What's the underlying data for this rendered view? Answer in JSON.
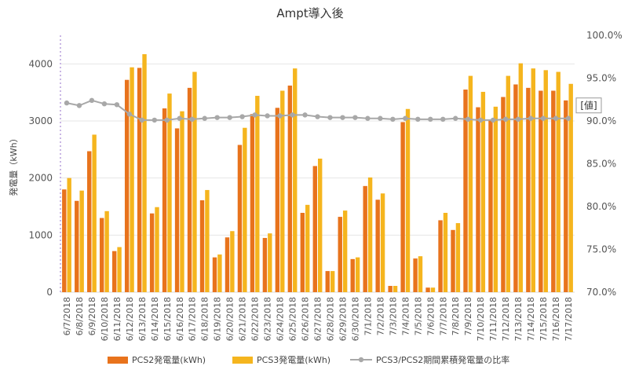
{
  "chart_data": {
    "type": "bar",
    "title": "Ampt導入後",
    "ylabel": "発電量（kWh）",
    "ylim": [
      0,
      4500
    ],
    "yticks": [
      0,
      1000,
      2000,
      3000,
      4000
    ],
    "y2lim": [
      70,
      100
    ],
    "y2ticks": [
      "70.0%",
      "75.0%",
      "80.0%",
      "85.0%",
      "90.0%",
      "95.0%",
      "100.0%"
    ],
    "grid": true,
    "legend_position": "bottom",
    "badge": "[値]",
    "categories": [
      "6/7/2018",
      "6/8/2018",
      "6/9/2018",
      "6/10/2018",
      "6/11/2018",
      "6/12/2018",
      "6/13/2018",
      "6/14/2018",
      "6/15/2018",
      "6/16/2018",
      "6/17/2018",
      "6/18/2018",
      "6/19/2018",
      "6/20/2018",
      "6/21/2018",
      "6/22/2018",
      "6/23/2018",
      "6/24/2018",
      "6/25/2018",
      "6/26/2018",
      "6/27/2018",
      "6/28/2018",
      "6/29/2018",
      "6/30/2018",
      "7/1/2018",
      "7/2/2018",
      "7/3/2018",
      "7/4/2018",
      "7/5/2018",
      "7/6/2018",
      "7/7/2018",
      "7/8/2018",
      "7/9/2018",
      "7/10/2018",
      "7/11/2018",
      "7/12/2018",
      "7/13/2018",
      "7/14/2018",
      "7/15/2018",
      "7/16/2018",
      "7/17/2018"
    ],
    "series": [
      {
        "name": "PCS2発電量(kWh)",
        "kind": "bar",
        "axis": "left",
        "color": "#E8731C",
        "values": [
          1800,
          1600,
          2470,
          1300,
          720,
          3720,
          3930,
          1380,
          3220,
          2870,
          3580,
          1610,
          610,
          960,
          2580,
          3120,
          950,
          3230,
          3620,
          1390,
          2210,
          370,
          1320,
          580,
          1860,
          1620,
          110,
          2980,
          590,
          80,
          1260,
          1090,
          3550,
          3240,
          3010,
          3420,
          3640,
          3580,
          3530,
          3530,
          3360
        ]
      },
      {
        "name": "PCS3発電量(kWh)",
        "kind": "bar",
        "axis": "left",
        "color": "#F5B51E",
        "values": [
          2000,
          1780,
          2760,
          1420,
          790,
          3940,
          4170,
          1490,
          3480,
          3170,
          3860,
          1790,
          660,
          1070,
          2880,
          3440,
          1030,
          3530,
          3920,
          1530,
          2340,
          370,
          1430,
          610,
          2010,
          1730,
          110,
          3210,
          630,
          80,
          1390,
          1210,
          3790,
          3510,
          3250,
          3790,
          4010,
          3920,
          3890,
          3860,
          3650
        ]
      },
      {
        "name": "PCS3/PCS2期間累積発電量の比率",
        "kind": "line",
        "axis": "right",
        "color": "#A8A8A8",
        "values": [
          92.1,
          91.8,
          92.4,
          92.0,
          91.9,
          90.8,
          90.1,
          90.1,
          90.1,
          90.3,
          90.2,
          90.3,
          90.4,
          90.4,
          90.5,
          90.7,
          90.6,
          90.6,
          90.7,
          90.7,
          90.5,
          90.4,
          90.4,
          90.4,
          90.3,
          90.3,
          90.2,
          90.3,
          90.2,
          90.2,
          90.2,
          90.3,
          90.2,
          90.1,
          90.1,
          90.2,
          90.2,
          90.3,
          90.3,
          90.3,
          90.3
        ]
      }
    ]
  }
}
